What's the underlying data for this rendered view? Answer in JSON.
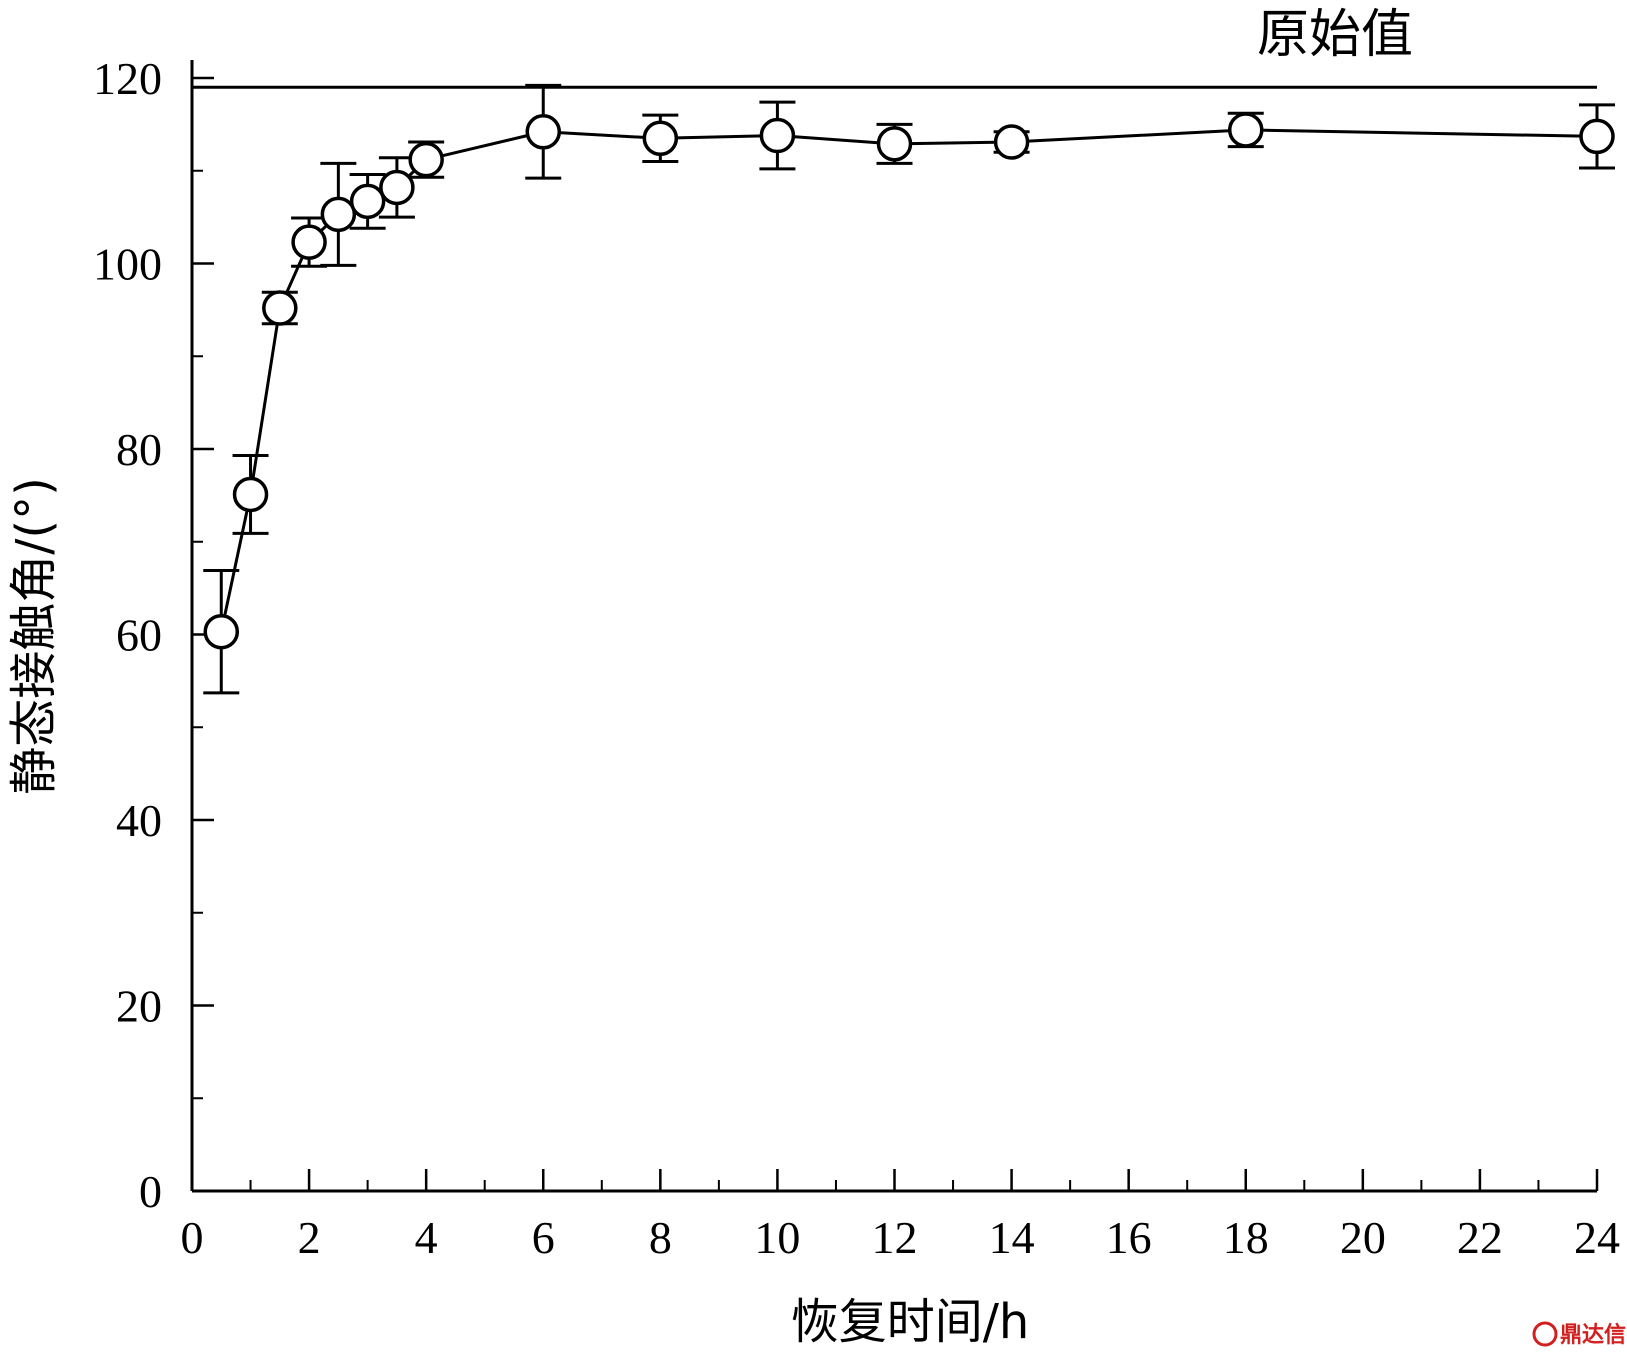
{
  "chart_data": {
    "type": "line",
    "xlabel": "恢复时间/h",
    "ylabel": "静态接触角/(°)",
    "xlim": [
      0,
      24
    ],
    "ylim": [
      0,
      120
    ],
    "x_ticks": [
      0,
      2,
      4,
      6,
      8,
      10,
      12,
      14,
      16,
      18,
      20,
      22,
      24
    ],
    "y_ticks": [
      0,
      20,
      40,
      60,
      80,
      100,
      120
    ],
    "x_minor_step": 1,
    "y_minor_step": 10,
    "grid": false,
    "series": [
      {
        "marker": "open-circle",
        "color": "#000000",
        "x": [
          0.5,
          1,
          1.5,
          2,
          2.5,
          3,
          3.5,
          4,
          6,
          8,
          10,
          12,
          14,
          18,
          24
        ],
        "y": [
          60.3,
          75.1,
          95.2,
          102.3,
          105.3,
          106.7,
          108.2,
          111.2,
          114.2,
          113.5,
          113.8,
          112.9,
          113.1,
          114.4,
          113.7
        ],
        "err": [
          6.6,
          4.2,
          1.7,
          2.6,
          5.5,
          2.9,
          3.2,
          1.9,
          5,
          2.5,
          3.6,
          2.1,
          1.1,
          1.8,
          3.4
        ]
      }
    ],
    "reference_line": {
      "y": 119,
      "label": "原始值"
    }
  },
  "watermark": {
    "text": "鼎达信",
    "color": "#d21f1f"
  }
}
